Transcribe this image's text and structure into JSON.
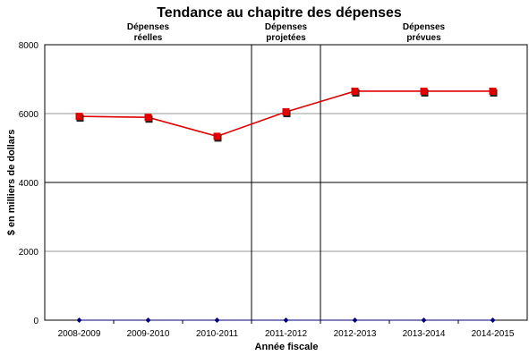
{
  "chart_data": {
    "type": "line",
    "title": "Tendance au chapitre des dépenses",
    "xlabel": "Année fiscale",
    "ylabel": "$ en milliers de dollars",
    "ylim": [
      0,
      8000
    ],
    "yticks": [
      0,
      2000,
      4000,
      6000,
      8000
    ],
    "grid": true,
    "categories": [
      "2008-2009",
      "2009-2010",
      "2010-2011",
      "2011-2012",
      "2012-2013",
      "2013-2014",
      "2014-2015"
    ],
    "series": [
      {
        "name": "",
        "color": "#e00000",
        "marker": "square",
        "values": [
          5920,
          5890,
          5340,
          6050,
          6650,
          6650,
          6650
        ]
      },
      {
        "name": "",
        "color": "#00007a",
        "marker": "diamond",
        "values": [
          0,
          0,
          0,
          0,
          0,
          0,
          0
        ]
      }
    ],
    "sections": [
      {
        "label_line1": "Dépenses",
        "label_line2": "réelles",
        "from": 0,
        "to": 2
      },
      {
        "label_line1": "Dépenses",
        "label_line2": "projetées",
        "from": 3,
        "to": 3
      },
      {
        "label_line1": "Dépenses",
        "label_line2": "prévues",
        "from": 4,
        "to": 6
      }
    ]
  }
}
